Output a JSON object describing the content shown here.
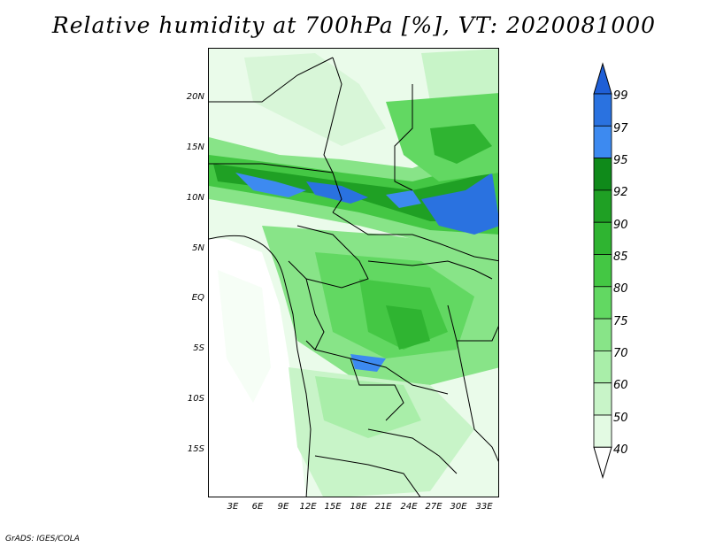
{
  "title": "Relative humidity at 700hPa [%], VT: 2020081000",
  "credit": "GrADS: IGES/COLA",
  "map": {
    "lat_labels": [
      "20N",
      "15N",
      "10N",
      "5N",
      "EQ",
      "5S",
      "10S",
      "15S"
    ],
    "lon_labels": [
      "3E",
      "6E",
      "9E",
      "12E",
      "15E",
      "18E",
      "21E",
      "24E",
      "27E",
      "30E",
      "33E"
    ]
  },
  "colorbar": {
    "labels": [
      "99",
      "97",
      "95",
      "92",
      "90",
      "85",
      "80",
      "75",
      "70",
      "60",
      "50",
      "40"
    ],
    "colors": [
      "#1f5fd6",
      "#2a72e0",
      "#3d8af0",
      "#0f8a1a",
      "#1fa024",
      "#2fb431",
      "#44c744",
      "#62d862",
      "#88e488",
      "#a9eea9",
      "#c8f4c8",
      "#e3fae3",
      "#ffffff"
    ]
  }
}
